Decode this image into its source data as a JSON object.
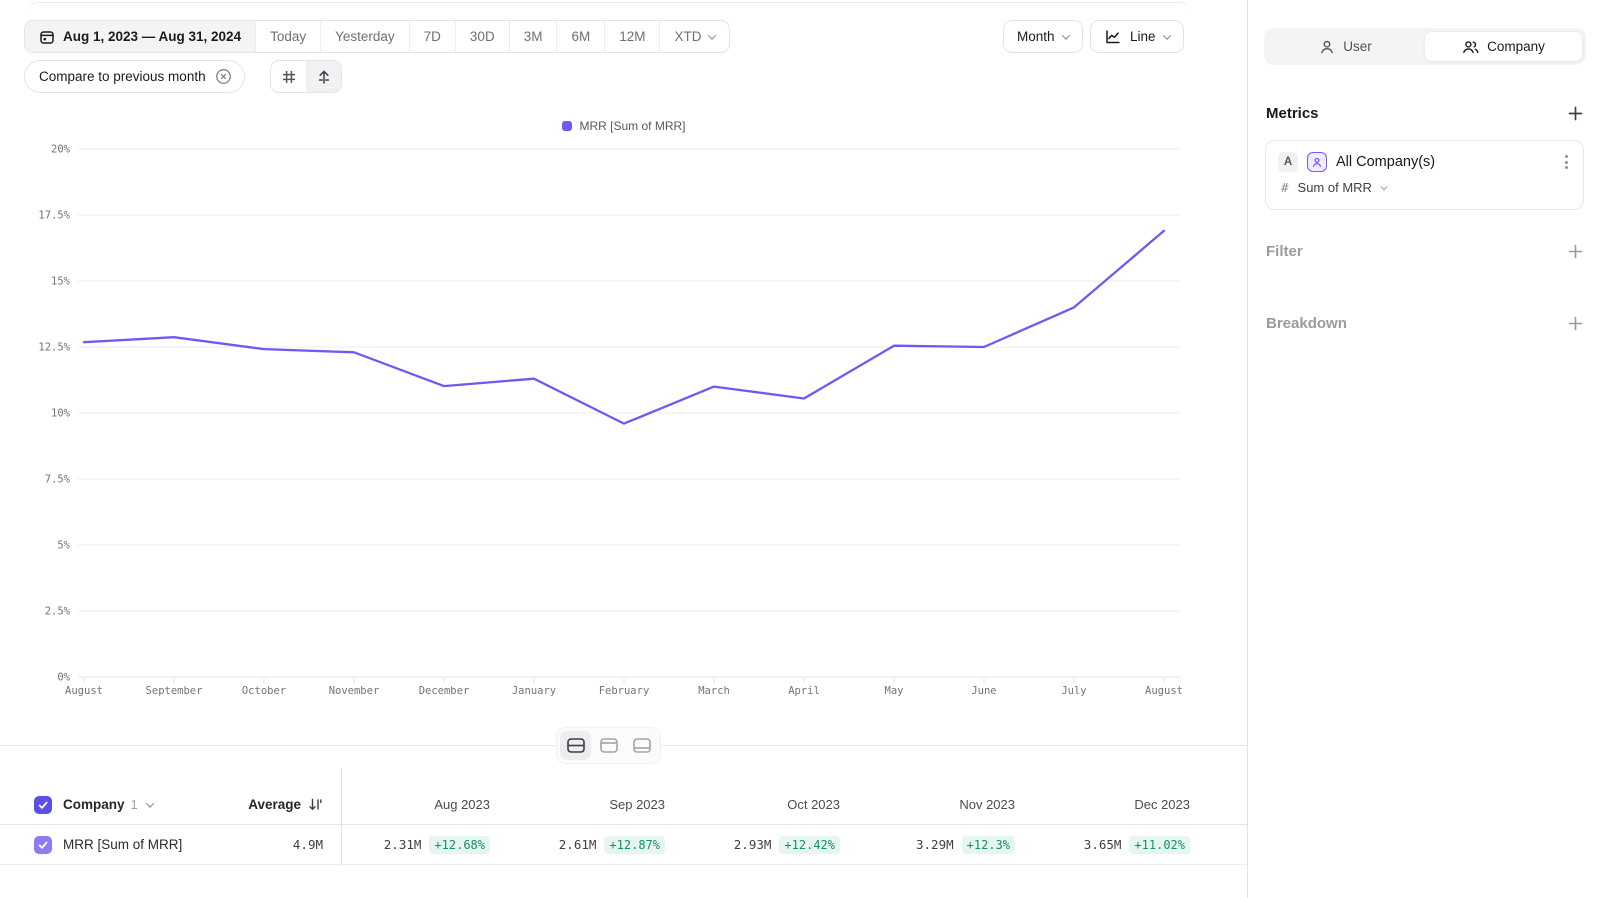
{
  "toolbar": {
    "date_range": "Aug 1, 2023 — Aug 31, 2024",
    "presets": [
      "Today",
      "Yesterday",
      "7D",
      "30D",
      "3M",
      "6M",
      "12M"
    ],
    "xtd_label": "XTD",
    "granularity": "Month",
    "chart_type": "Line",
    "compare_label": "Compare to previous month"
  },
  "icons": [
    "calendar-icon",
    "chevron-down-icon",
    "close-circle-icon",
    "grid-icon",
    "annotation-arrow-icon",
    "line-chart-icon",
    "user-icon",
    "company-icon",
    "plus-icon",
    "kebab-menu-icon",
    "hash-icon",
    "sort-icon",
    "checkbox-check-icon",
    "panel-split-icon",
    "panel-top-icon",
    "panel-bottom-icon"
  ],
  "chart_data": {
    "type": "line",
    "title": "",
    "unit": "%",
    "x": [
      "August",
      "September",
      "October",
      "November",
      "December",
      "January",
      "February",
      "March",
      "April",
      "May",
      "June",
      "July",
      "August"
    ],
    "series": [
      {
        "name": "MRR [Sum of MRR]",
        "color": "#6c5bf2",
        "values": [
          12.68,
          12.87,
          12.42,
          12.3,
          11.02,
          11.3,
          9.6,
          11.0,
          10.55,
          12.55,
          12.5,
          14.0,
          16.9
        ]
      }
    ],
    "ylim": [
      0,
      20
    ],
    "yticks": [
      0,
      2.5,
      5,
      7.5,
      10,
      12.5,
      15,
      17.5,
      20
    ],
    "grid": true,
    "legend_position": "top"
  },
  "sidebar": {
    "tabs": [
      {
        "label": "User"
      },
      {
        "label": "Company",
        "active": true
      }
    ],
    "metrics_title": "Metrics",
    "metric": {
      "badge": "A",
      "name": "All Company(s)",
      "hash": "#",
      "aggregation": "Sum of MRR"
    },
    "filter_label": "Filter",
    "breakdown_label": "Breakdown"
  },
  "table": {
    "entity_label": "Company",
    "entity_count": "1",
    "average_label": "Average",
    "columns": [
      "Aug 2023",
      "Sep 2023",
      "Oct 2023",
      "Nov 2023",
      "Dec 2023"
    ],
    "rows": [
      {
        "name": "MRR [Sum of MRR]",
        "average": "4.9M",
        "values": [
          "2.31M",
          "2.61M",
          "2.93M",
          "3.29M",
          "3.65M"
        ],
        "changes": [
          "+12.68%",
          "+12.87%",
          "+12.42%",
          "+12.3%",
          "+11.02%"
        ]
      }
    ]
  },
  "colors": {
    "accent": "#6c5bf2",
    "checkbox_header": "#5b4ee9",
    "checkbox_row": "#8d7bf4",
    "badge_text": "#12916b",
    "badge_bg": "#e7f5ef",
    "border": "#e4e4e7"
  }
}
